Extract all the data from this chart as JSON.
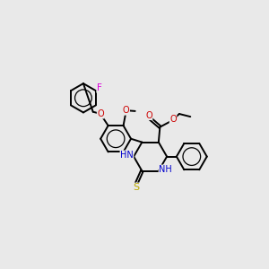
{
  "bg_color": "#e9e9e9",
  "bond_color": "#000000",
  "atom_colors": {
    "N": "#0000cc",
    "O": "#cc0000",
    "S": "#bbaa00",
    "F": "#dd00dd",
    "C": "#000000"
  },
  "figsize": [
    3.0,
    3.0
  ],
  "dpi": 100
}
